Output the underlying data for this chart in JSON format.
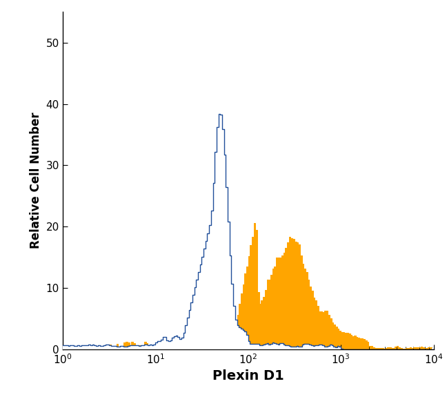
{
  "title": "",
  "xlabel": "Plexin D1",
  "ylabel": "Relative Cell Number",
  "xlim_log": [
    0,
    4
  ],
  "ylim": [
    0,
    55
  ],
  "yticks": [
    0,
    10,
    20,
    30,
    40,
    50
  ],
  "background_color": "#ffffff",
  "blue_color": "#1f4e99",
  "orange_color": "#FFA500",
  "xlabel_fontsize": 14,
  "ylabel_fontsize": 12,
  "tick_fontsize": 11,
  "n_bins": 200
}
